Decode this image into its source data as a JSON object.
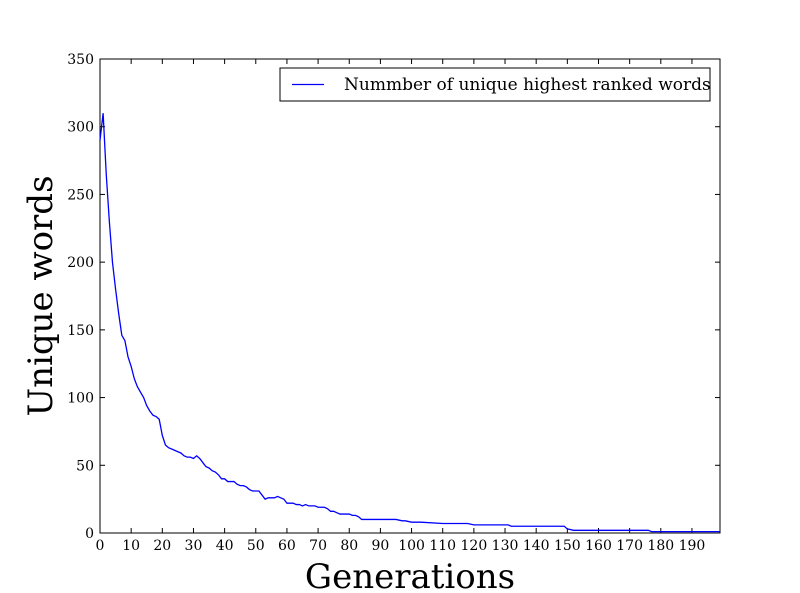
{
  "chart_data": {
    "type": "line",
    "title": "",
    "xlabel": "Generations",
    "ylabel": "Unique words",
    "xlim": [
      0,
      199
    ],
    "ylim": [
      0,
      350
    ],
    "xticks": [
      0,
      10,
      20,
      30,
      40,
      50,
      60,
      70,
      80,
      90,
      100,
      110,
      120,
      130,
      140,
      150,
      160,
      170,
      180,
      190
    ],
    "yticks": [
      0,
      50,
      100,
      150,
      200,
      250,
      300,
      350
    ],
    "grid": false,
    "legend": {
      "position": "top-right"
    },
    "series": [
      {
        "name": "Nummber of unique highest ranked words",
        "color": "#0000ff",
        "x": [
          0,
          1,
          2,
          3,
          4,
          5,
          6,
          7,
          8,
          9,
          10,
          11,
          12,
          13,
          14,
          15,
          16,
          17,
          18,
          19,
          20,
          21,
          22,
          23,
          24,
          25,
          26,
          27,
          28,
          29,
          30,
          31,
          32,
          33,
          34,
          35,
          36,
          37,
          38,
          39,
          40,
          41,
          42,
          43,
          44,
          45,
          46,
          47,
          48,
          49,
          50,
          51,
          52,
          53,
          54,
          55,
          56,
          57,
          58,
          59,
          60,
          61,
          62,
          63,
          64,
          65,
          66,
          67,
          68,
          69,
          70,
          71,
          72,
          73,
          74,
          75,
          76,
          77,
          78,
          79,
          80,
          81,
          82,
          83,
          84,
          85,
          88,
          92,
          95,
          97,
          98,
          100,
          102,
          103,
          110,
          115,
          118,
          120,
          125,
          131,
          132,
          140,
          148,
          149,
          150,
          152,
          160,
          170,
          176,
          177,
          180,
          190,
          199
        ],
        "y": [
          290,
          310,
          265,
          230,
          200,
          180,
          162,
          146,
          142,
          130,
          123,
          114,
          108,
          104,
          100,
          94,
          90,
          87,
          86,
          84,
          72,
          65,
          63,
          62,
          61,
          60,
          59,
          57,
          56,
          56,
          55,
          57,
          55,
          52,
          49,
          48,
          46,
          45,
          43,
          40,
          40,
          38,
          38,
          38,
          36,
          35,
          35,
          34,
          32,
          31,
          31,
          31,
          28,
          25,
          26,
          26,
          26,
          27,
          26,
          25,
          22,
          22,
          22,
          21,
          21,
          20,
          21,
          20,
          20,
          20,
          19,
          19,
          19,
          18,
          16,
          16,
          15,
          14,
          14,
          14,
          14,
          13,
          13,
          12,
          10,
          10,
          10,
          10,
          10,
          9,
          9,
          8,
          8,
          8,
          7,
          7,
          7,
          6,
          6,
          6,
          5,
          5,
          5,
          5,
          3,
          2,
          2,
          2,
          2,
          1,
          1,
          1,
          1
        ]
      }
    ]
  }
}
